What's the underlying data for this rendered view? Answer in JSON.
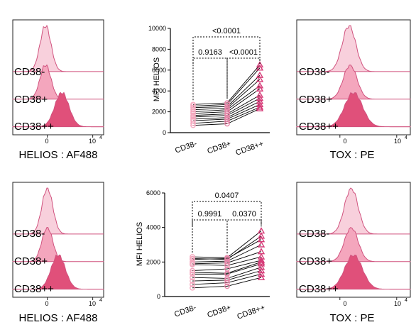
{
  "colors": {
    "pos_fill": "#f4a6bd",
    "pos_line": "#d0527e",
    "neg_fill": "#f8d0dc",
    "pp_fill_top": "#e0507a",
    "pp_fill_bottom": "#e0137a",
    "dot_neg": "#f4a6bd",
    "dot_pos": "#e686a8",
    "dot_pp": "#d63c78",
    "frame": "#222222"
  },
  "chart_data": [
    {
      "type": "histogram",
      "panel": "top-left",
      "populations": [
        "CD38-",
        "CD38+",
        "CD38++"
      ],
      "ticks": [
        "0",
        "10"
      ],
      "tick_exponent": "4",
      "xlabel": "HELIOS : AF488",
      "peaks": [
        0.36,
        0.36,
        0.54
      ]
    },
    {
      "type": "scatter",
      "panel": "top-middle",
      "ylabel": "MFI HELIOS",
      "categories": [
        "CD38-",
        "CD38+",
        "CD38++"
      ],
      "ylim": [
        0,
        10000
      ],
      "yticks": [
        "0",
        "2000",
        "4000",
        "6000",
        "8000",
        "10000"
      ],
      "comparisons": [
        {
          "from": "CD38-",
          "to": "CD38+",
          "label": "0.9163"
        },
        {
          "from": "CD38+",
          "to": "CD38++",
          "label": "<0.0001"
        },
        {
          "from": "CD38-",
          "to": "CD38++",
          "label": "<0.0001"
        }
      ],
      "paired": [
        [
          2700,
          2850,
          6500
        ],
        [
          2550,
          2700,
          6200
        ],
        [
          2400,
          2500,
          5500
        ],
        [
          2200,
          2350,
          5100
        ],
        [
          2000,
          2200,
          4500
        ],
        [
          1850,
          2000,
          4200
        ],
        [
          1650,
          1800,
          3600
        ],
        [
          1500,
          1650,
          3300
        ],
        [
          1300,
          1450,
          3000
        ],
        [
          1150,
          1300,
          2700
        ],
        [
          900,
          1100,
          2450
        ],
        [
          700,
          850,
          2300
        ]
      ]
    },
    {
      "type": "histogram",
      "panel": "top-right",
      "populations": [
        "CD38-",
        "CD38+",
        "CD38++"
      ],
      "ticks": [
        "0",
        "10"
      ],
      "tick_exponent": "4",
      "xlabel": "TOX : PE",
      "peaks": [
        0.46,
        0.47,
        0.5
      ]
    },
    {
      "type": "histogram",
      "panel": "bottom-left",
      "populations": [
        "CD38-",
        "CD38+",
        "CD38++"
      ],
      "ticks": [
        "0",
        "10"
      ],
      "tick_exponent": "4",
      "xlabel": "HELIOS : AF488",
      "peaks": [
        0.38,
        0.38,
        0.5
      ]
    },
    {
      "type": "scatter",
      "panel": "bottom-middle",
      "ylabel": "MFI HELIOS",
      "categories": [
        "CD38-",
        "CD38+",
        "CD38++"
      ],
      "ylim": [
        0,
        6000
      ],
      "yticks": [
        "0",
        "2000",
        "4000",
        "6000"
      ],
      "comparisons": [
        {
          "from": "CD38-",
          "to": "CD38+",
          "label": "0.9991"
        },
        {
          "from": "CD38+",
          "to": "CD38++",
          "label": "0.0370"
        },
        {
          "from": "CD38-",
          "to": "CD38++",
          "label": "0.0407"
        }
      ],
      "paired": [
        [
          2300,
          2250,
          3800
        ],
        [
          2200,
          2150,
          3500
        ],
        [
          2150,
          2200,
          3300
        ],
        [
          2000,
          2050,
          3000
        ],
        [
          1900,
          1950,
          2600
        ],
        [
          1850,
          1800,
          2300
        ],
        [
          1500,
          1600,
          2100
        ],
        [
          1400,
          1350,
          2000
        ],
        [
          1300,
          1300,
          1900
        ],
        [
          1100,
          1050,
          1700
        ],
        [
          900,
          950,
          1500
        ],
        [
          700,
          800,
          1300
        ],
        [
          500,
          600,
          1100
        ]
      ]
    },
    {
      "type": "histogram",
      "panel": "bottom-right",
      "populations": [
        "CD38-",
        "CD38+",
        "CD38++"
      ],
      "ticks": [
        "0",
        "10"
      ],
      "tick_exponent": "4",
      "xlabel": "TOX : PE",
      "peaks": [
        0.48,
        0.48,
        0.5
      ]
    }
  ]
}
